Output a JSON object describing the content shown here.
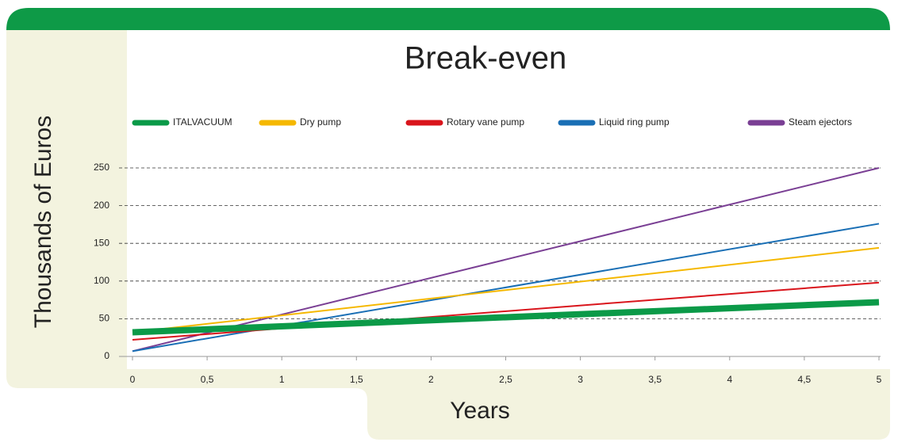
{
  "chart_data": {
    "type": "line",
    "title": "Break-even",
    "xlabel": "Years",
    "ylabel": "Thousands of Euros",
    "x": [
      0,
      5
    ],
    "series": [
      {
        "name": "ITALVACUUM",
        "color": "#0b9a48",
        "values": [
          32,
          72
        ]
      },
      {
        "name": "Dry pump",
        "color": "#f5b800",
        "values": [
          32,
          144
        ]
      },
      {
        "name": "Rotary vane pump",
        "color": "#d9151c",
        "values": [
          22,
          98
        ]
      },
      {
        "name": "Liquid ring pump",
        "color": "#1a6fb5",
        "values": [
          7,
          176
        ]
      },
      {
        "name": "Steam ejectors",
        "color": "#7a3f94",
        "values": [
          7,
          250
        ]
      }
    ],
    "xlim": [
      0,
      5
    ],
    "xticks": [
      0,
      {
        "value": 0.5,
        "label": "0,5"
      },
      1,
      {
        "value": 1.5,
        "label": "1,5"
      },
      2,
      {
        "value": 2.5,
        "label": "2,5"
      },
      3,
      {
        "value": 3.5,
        "label": "3,5"
      },
      4,
      {
        "value": 4.5,
        "label": "4,5"
      },
      5
    ],
    "ylim": [
      0,
      250
    ],
    "yticks": [
      0,
      50,
      100,
      150,
      200,
      250
    ],
    "grid": true
  }
}
